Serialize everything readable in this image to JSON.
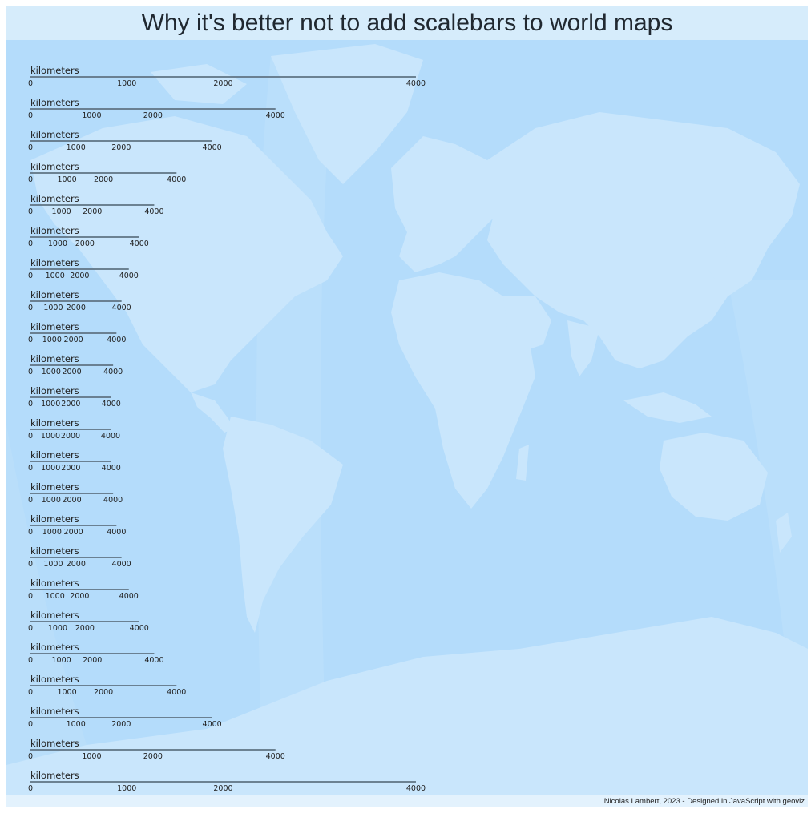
{
  "title": "Why it's better not to add scalebars to world maps",
  "credits": "Nicolas Lambert, 2023 - Designed in JavaScript with geoviz",
  "colors": {
    "frame": "#e3f2fd",
    "title_band": "#d6ecfb",
    "ocean": "#b4dcfb",
    "graticule_band": "#c0e2fb",
    "land": "#c9e6fc",
    "bar": "#5f7383",
    "text": "#222222"
  },
  "scalebars": {
    "unit_label": "kilometers",
    "tick_values": [
      0,
      1000,
      2000,
      4000
    ],
    "tick_labels": [
      "0",
      "1000",
      "2000",
      "4000"
    ],
    "rows": [
      {
        "bar_km": 4000
      },
      {
        "bar_km": 4000
      },
      {
        "bar_km": 4000
      },
      {
        "bar_km": 4000
      },
      {
        "bar_km": 4000
      },
      {
        "bar_km": 4000
      },
      {
        "bar_km": 4000
      },
      {
        "bar_km": 4000
      },
      {
        "bar_km": 4000
      },
      {
        "bar_km": 4000
      },
      {
        "bar_km": 4000
      },
      {
        "bar_km": 4000
      },
      {
        "bar_km": 4000
      },
      {
        "bar_km": 4000
      },
      {
        "bar_km": 4000
      },
      {
        "bar_km": 4000
      },
      {
        "bar_km": 4000
      },
      {
        "bar_km": 4000
      },
      {
        "bar_km": 4000
      },
      {
        "bar_km": 4000
      },
      {
        "bar_km": 4000
      },
      {
        "bar_km": 4000
      },
      {
        "bar_km": 4000
      }
    ]
  }
}
